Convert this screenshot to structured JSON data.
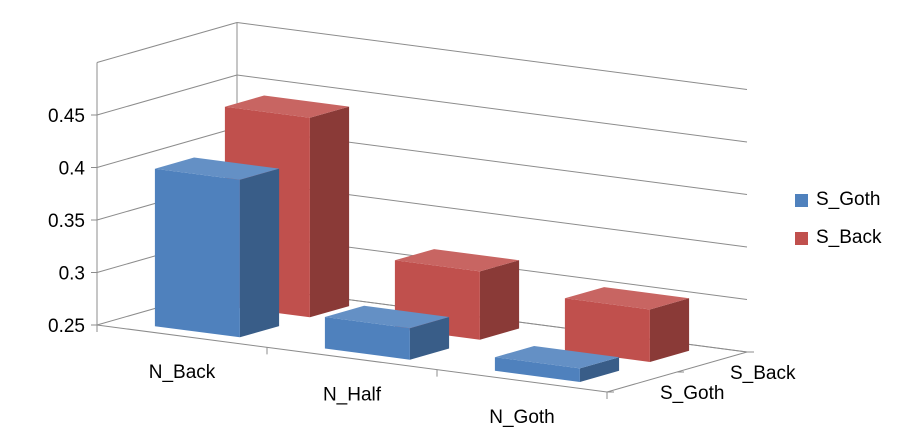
{
  "chart_data": {
    "type": "bar",
    "subtype": "3d-column",
    "title": "",
    "xlabel": "",
    "ylabel": "",
    "categories": [
      "N_Back",
      "N_Half",
      "N_Goth"
    ],
    "depth_categories": [
      "S_Goth",
      "S_Back"
    ],
    "series": [
      {
        "name": "S_Goth",
        "color": "#4F81BD",
        "values": [
          0.4,
          0.28,
          0.263
        ]
      },
      {
        "name": "S_Back",
        "color": "#C0504D",
        "values": [
          0.44,
          0.315,
          0.3
        ]
      }
    ],
    "ylim": [
      0.25,
      0.45
    ],
    "yticks": [
      "0.25",
      "0.3",
      "0.35",
      "0.4",
      "0.45"
    ],
    "grid": true,
    "legend_position": "right"
  }
}
